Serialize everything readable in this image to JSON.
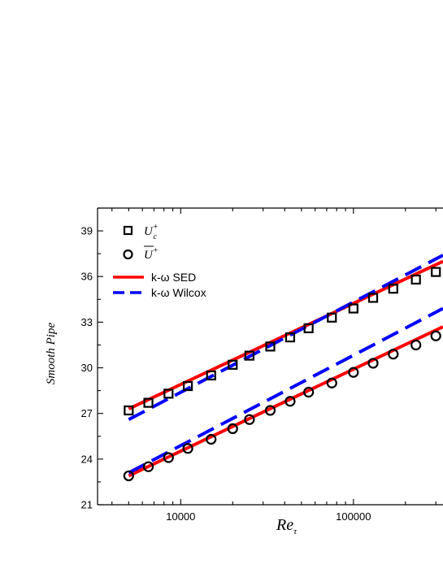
{
  "chart_data": {
    "type": "line",
    "title": "",
    "ylabel": "Smooth Pipe",
    "xlabel": {
      "main": "Re",
      "sub": "τ"
    },
    "xscale": "log",
    "xlim": [
      3300,
      330000
    ],
    "ylim": [
      21,
      40.5
    ],
    "yticks": [
      21,
      24,
      27,
      30,
      33,
      36,
      39
    ],
    "xticks": [
      10000,
      100000
    ],
    "xtick_labels": [
      "10000",
      "100000"
    ],
    "legend_position": "top-left",
    "legend": [
      {
        "key": "uc",
        "symbol": "U",
        "sup": "+",
        "sub": "c",
        "marker": "square"
      },
      {
        "key": "ubar",
        "symbol": "U",
        "sup": "+",
        "overline": true,
        "marker": "circle"
      },
      {
        "key": "sed",
        "label": "k-ω SED",
        "color": "#ff0000",
        "style": "solid"
      },
      {
        "key": "wilcox",
        "label": "k-ω Wilcox",
        "color": "#0000ff",
        "style": "dashed"
      }
    ],
    "series": [
      {
        "key": "uc",
        "type": "scatter",
        "marker": "square",
        "color": "#000000",
        "x": [
          5000,
          6500,
          8500,
          11000,
          15000,
          20000,
          25000,
          33000,
          43000,
          55000,
          75000,
          100000,
          130000,
          170000,
          230000,
          300000
        ],
        "y": [
          27.2,
          27.7,
          28.3,
          28.8,
          29.5,
          30.2,
          30.8,
          31.4,
          32.0,
          32.6,
          33.3,
          33.9,
          34.6,
          35.2,
          35.8,
          36.3
        ]
      },
      {
        "key": "ubar",
        "type": "scatter",
        "marker": "circle",
        "color": "#000000",
        "x": [
          5000,
          6500,
          8500,
          11000,
          15000,
          20000,
          25000,
          33000,
          43000,
          55000,
          75000,
          100000,
          130000,
          170000,
          230000,
          300000
        ],
        "y": [
          22.9,
          23.5,
          24.1,
          24.7,
          25.3,
          26.0,
          26.6,
          27.2,
          27.8,
          28.4,
          29.0,
          29.7,
          30.3,
          30.9,
          31.5,
          32.1
        ]
      },
      {
        "key": "sed_uc",
        "type": "line",
        "color": "#ff0000",
        "style": "solid",
        "x": [
          5000,
          330000
        ],
        "y": [
          27.3,
          37.0
        ]
      },
      {
        "key": "sed_ubar",
        "type": "line",
        "color": "#ff0000",
        "style": "solid",
        "x": [
          5000,
          330000
        ],
        "y": [
          22.9,
          32.7
        ]
      },
      {
        "key": "wilcox_uc",
        "type": "line",
        "color": "#0000ff",
        "style": "dashed",
        "x": [
          5000,
          330000
        ],
        "y": [
          26.6,
          37.4
        ]
      },
      {
        "key": "wilcox_ubar",
        "type": "line",
        "color": "#0000ff",
        "style": "dashed",
        "x": [
          5000,
          330000
        ],
        "y": [
          23.1,
          33.9
        ]
      }
    ]
  }
}
